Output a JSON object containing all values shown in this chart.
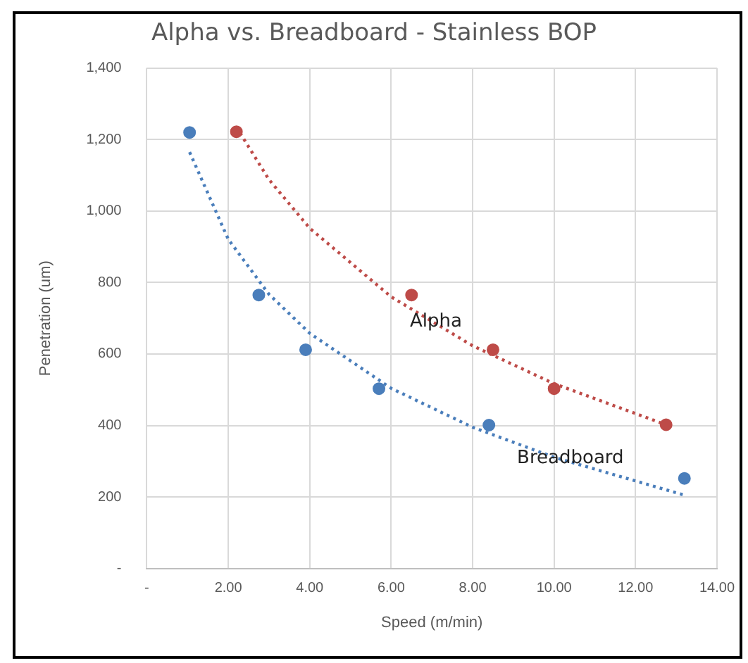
{
  "chart_data": {
    "type": "scatter",
    "title": "Alpha vs. Breadboard - Stainless BOP",
    "xlabel": "Speed (m/min)",
    "ylabel": "Penetration (um)",
    "xlim": [
      0,
      14
    ],
    "xticks": [
      {
        "value": 0,
        "label": "-"
      },
      {
        "value": 2,
        "label": "2.00"
      },
      {
        "value": 4,
        "label": "4.00"
      },
      {
        "value": 6,
        "label": "6.00"
      },
      {
        "value": 8,
        "label": "8.00"
      },
      {
        "value": 10,
        "label": "10.00"
      },
      {
        "value": 12,
        "label": "12.00"
      },
      {
        "value": 14,
        "label": "14.00"
      }
    ],
    "ylim": [
      0,
      1400
    ],
    "yticks": [
      {
        "value": 0,
        "label": "-"
      },
      200,
      400,
      600,
      800,
      {
        "value": 1000,
        "label": "1,000"
      },
      {
        "value": 1200,
        "label": "1,200"
      },
      {
        "value": 1400,
        "label": "1,400"
      }
    ],
    "grid": true,
    "legend": false,
    "series": [
      {
        "color": "#4a7ebb",
        "marker": "circle",
        "x": [
          1.05,
          2.75,
          3.9,
          5.7,
          8.4,
          13.2
        ],
        "values": [
          1220,
          765,
          612,
          503,
          401,
          252
        ]
      },
      {
        "color": "#be4b48",
        "marker": "circle",
        "x": [
          2.2,
          6.5,
          8.5,
          10.0,
          12.75
        ],
        "values": [
          1222,
          765,
          612,
          503,
          402
        ]
      },
      {
        "type": "line",
        "color": "#4a7ebb",
        "marker": "none",
        "line_style": "dotted",
        "x": [
          1.05,
          2,
          3,
          4,
          6,
          8,
          10,
          13.2
        ],
        "values": [
          1165,
          921,
          767,
          658,
          504,
          395,
          311,
          205
        ]
      },
      {
        "type": "line",
        "color": "#be4b48",
        "marker": "none",
        "line_style": "dotted",
        "x": [
          2.2,
          3,
          4,
          6,
          8,
          10,
          12.75
        ],
        "values": [
          1235,
          1088,
          952,
          760,
          623,
          517,
          402
        ]
      }
    ],
    "annotations": [
      {
        "text": "Alpha",
        "x": 7.1,
        "y": 690
      },
      {
        "text": "Breadboard",
        "x": 10.4,
        "y": 308
      }
    ]
  }
}
